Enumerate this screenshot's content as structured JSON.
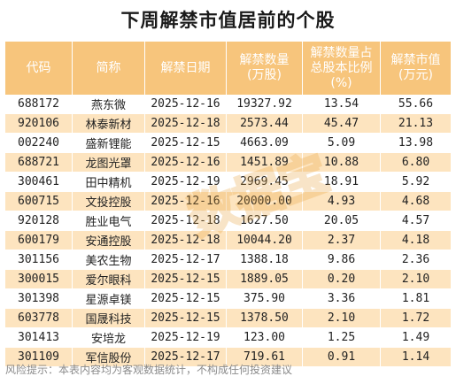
{
  "title": "下周解禁市值居前的个股",
  "headers": [
    "代码",
    "简称",
    "解禁日期",
    "解禁数量\n(万股)",
    "解禁数量占\n总股本比例\n(%)",
    "解禁市值\n(万元)"
  ],
  "rows": [
    [
      "688172",
      "燕东微",
      "2025-12-16",
      "19327.92",
      "13.54",
      "55.66"
    ],
    [
      "920106",
      "林泰新材",
      "2025-12-18",
      "2573.44",
      "45.47",
      "21.13"
    ],
    [
      "002240",
      "盛新锂能",
      "2025-12-15",
      "4663.09",
      "5.09",
      "13.98"
    ],
    [
      "688721",
      "龙图光罩",
      "2025-12-16",
      "1451.89",
      "10.88",
      "6.80"
    ],
    [
      "300461",
      "田中精机",
      "2025-12-19",
      "2969.45",
      "18.91",
      "5.92"
    ],
    [
      "600715",
      "文投控股",
      "2025-12-16",
      "20000.00",
      "4.93",
      "4.68"
    ],
    [
      "920128",
      "胜业电气",
      "2025-12-18",
      "1627.50",
      "20.05",
      "4.57"
    ],
    [
      "600179",
      "安通控股",
      "2025-12-18",
      "10044.20",
      "2.37",
      "4.18"
    ],
    [
      "301156",
      "美农生物",
      "2025-12-17",
      "1388.18",
      "9.86",
      "2.36"
    ],
    [
      "300015",
      "爱尔眼科",
      "2025-12-15",
      "1889.05",
      "0.20",
      "2.10"
    ],
    [
      "301398",
      "星源卓镁",
      "2025-12-15",
      "375.90",
      "3.36",
      "1.81"
    ],
    [
      "603778",
      "国晟科技",
      "2025-12-15",
      "1378.50",
      "2.10",
      "1.72"
    ],
    [
      "301413",
      "安培龙",
      "2025-12-19",
      "123.00",
      "1.25",
      "1.49"
    ],
    [
      "301109",
      "军信股份",
      "2025-12-17",
      "719.61",
      "0.91",
      "1.14"
    ]
  ],
  "watermark_text": "数据宝",
  "footer": "风险提示：本表内容均为客观数据统计，不构成任何投资建议",
  "colors": {
    "header_bg": "#f7c57c",
    "header_text": "#ffffff",
    "stripe": "#fde4bf",
    "watermark": "#e8a23a"
  }
}
